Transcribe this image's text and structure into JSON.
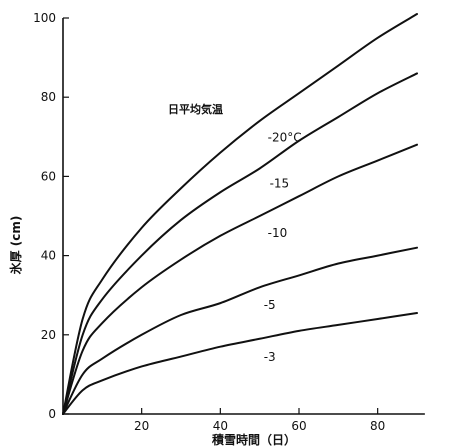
{
  "chart_data": {
    "type": "line",
    "xlabel": "積雪時間（日）",
    "ylabel": "氷厚 (cm)",
    "xlim": [
      0,
      92
    ],
    "ylim": [
      0,
      100
    ],
    "x_ticks": [
      20,
      40,
      60,
      80
    ],
    "y_ticks": [
      0,
      20,
      40,
      60,
      80,
      100
    ],
    "legend_title": "日平均気温",
    "grid": false,
    "series": [
      {
        "name": "-20°C",
        "x": [
          0,
          5,
          10,
          20,
          30,
          40,
          50,
          60,
          70,
          80,
          90
        ],
        "y": [
          0,
          24,
          34,
          47,
          57,
          66,
          74,
          81,
          88,
          95,
          101
        ]
      },
      {
        "name": "-15",
        "x": [
          0,
          5,
          10,
          20,
          30,
          40,
          50,
          60,
          70,
          80,
          90
        ],
        "y": [
          0,
          20,
          29,
          40,
          49,
          56,
          62,
          69,
          75,
          81,
          86
        ]
      },
      {
        "name": "-10",
        "x": [
          0,
          5,
          10,
          20,
          30,
          40,
          50,
          60,
          70,
          80,
          90
        ],
        "y": [
          0,
          16,
          23,
          32,
          39,
          45,
          50,
          55,
          60,
          64,
          68
        ]
      },
      {
        "name": "-5",
        "x": [
          0,
          5,
          10,
          20,
          30,
          40,
          50,
          60,
          70,
          80,
          90
        ],
        "y": [
          0,
          10,
          14,
          20,
          25,
          28,
          32,
          35,
          38,
          40,
          42
        ]
      },
      {
        "name": "-3",
        "x": [
          0,
          5,
          10,
          20,
          30,
          40,
          50,
          60,
          70,
          80,
          90
        ],
        "y": [
          0,
          6,
          8.5,
          12,
          14.5,
          17,
          19,
          21,
          22.5,
          24,
          25.5
        ]
      }
    ]
  }
}
